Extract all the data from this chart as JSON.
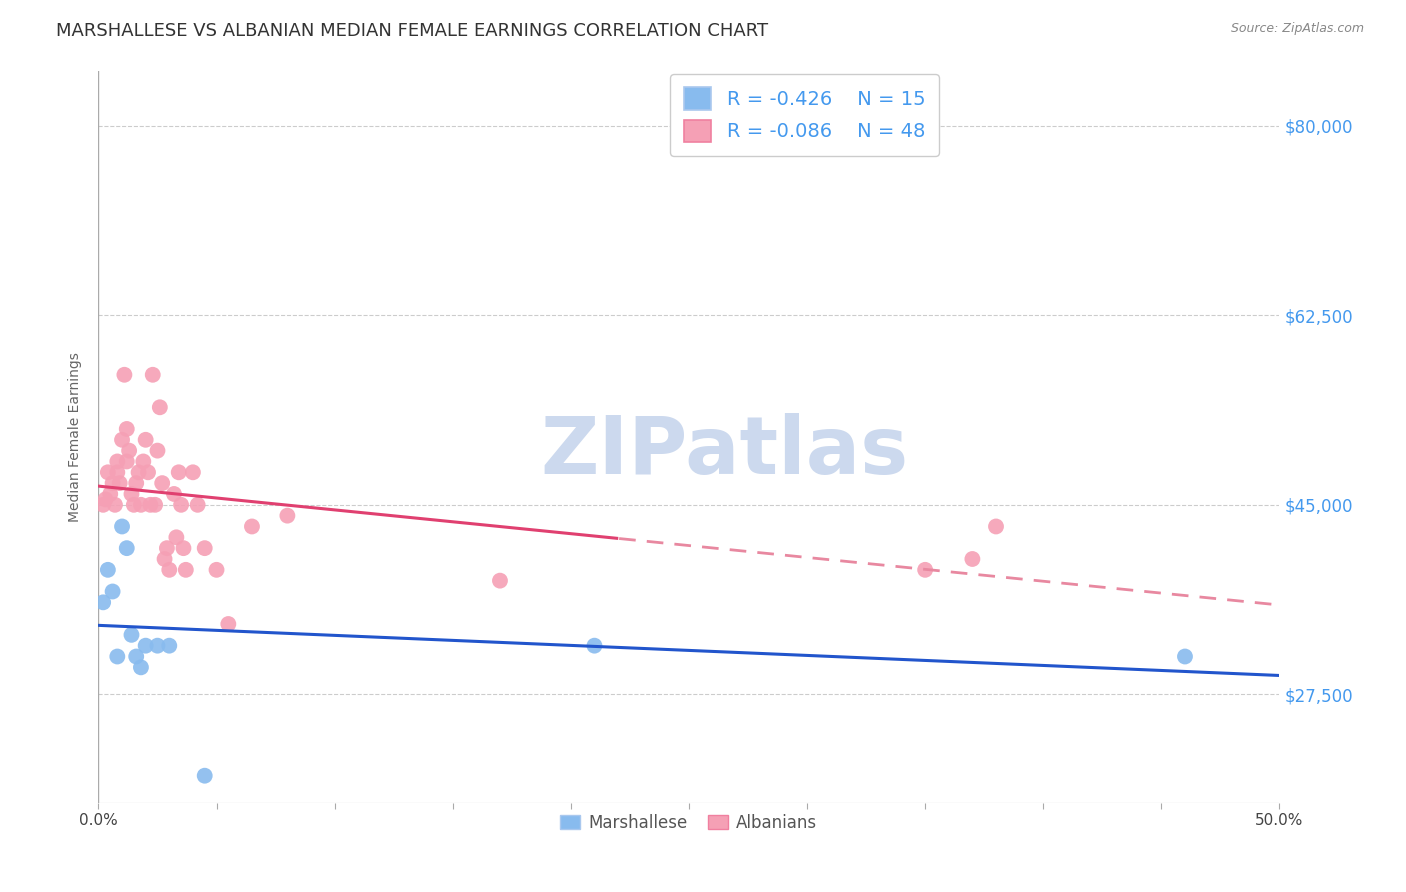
{
  "title": "MARSHALLESE VS ALBANIAN MEDIAN FEMALE EARNINGS CORRELATION CHART",
  "source": "Source: ZipAtlas.com",
  "ylabel": "Median Female Earnings",
  "xlim": [
    0.0,
    0.5
  ],
  "ylim": [
    17500,
    85000
  ],
  "xtick_vals": [
    0.0,
    0.05,
    0.1,
    0.15,
    0.2,
    0.25,
    0.3,
    0.35,
    0.4,
    0.45,
    0.5
  ],
  "xtick_labels_show": {
    "0.0": "0.0%",
    "0.5": "50.0%"
  },
  "ytick_vals": [
    27500,
    45000,
    62500,
    80000
  ],
  "ytick_labels": [
    "$27,500",
    "$45,000",
    "$62,500",
    "$80,000"
  ],
  "background_color": "#ffffff",
  "grid_color": "#cccccc",
  "watermark": "ZIPatlas",
  "watermark_color": "#ccd9ee",
  "legend_r_marshallese": "-0.426",
  "legend_n_marshallese": "15",
  "legend_r_albanians": "-0.086",
  "legend_n_albanians": "48",
  "marshallese_color": "#88bbee",
  "albanians_color": "#f5a0b5",
  "marshallese_line_color": "#2255cc",
  "albanians_line_solid_color": "#e04070",
  "albanians_line_dashed_color": "#e888a0",
  "albanians_line_switch_x": 0.22,
  "title_fontsize": 13,
  "axis_label_fontsize": 10,
  "tick_label_color_y": "#4499ee",
  "marshallese_x": [
    0.002,
    0.004,
    0.006,
    0.008,
    0.01,
    0.012,
    0.014,
    0.016,
    0.018,
    0.02,
    0.025,
    0.03,
    0.045,
    0.21,
    0.46
  ],
  "marshallese_y": [
    36000,
    39000,
    37000,
    31000,
    43000,
    41000,
    33000,
    31000,
    30000,
    32000,
    32000,
    32000,
    20000,
    32000,
    31000
  ],
  "albanians_x": [
    0.002,
    0.003,
    0.004,
    0.005,
    0.006,
    0.007,
    0.008,
    0.008,
    0.009,
    0.01,
    0.011,
    0.012,
    0.012,
    0.013,
    0.014,
    0.015,
    0.016,
    0.017,
    0.018,
    0.019,
    0.02,
    0.021,
    0.022,
    0.023,
    0.024,
    0.025,
    0.026,
    0.027,
    0.028,
    0.029,
    0.03,
    0.032,
    0.033,
    0.034,
    0.035,
    0.036,
    0.037,
    0.04,
    0.042,
    0.045,
    0.05,
    0.055,
    0.065,
    0.08,
    0.17,
    0.35,
    0.37,
    0.38
  ],
  "albanians_y": [
    45000,
    45500,
    48000,
    46000,
    47000,
    45000,
    48000,
    49000,
    47000,
    51000,
    57000,
    49000,
    52000,
    50000,
    46000,
    45000,
    47000,
    48000,
    45000,
    49000,
    51000,
    48000,
    45000,
    57000,
    45000,
    50000,
    54000,
    47000,
    40000,
    41000,
    39000,
    46000,
    42000,
    48000,
    45000,
    41000,
    39000,
    48000,
    45000,
    41000,
    39000,
    34000,
    43000,
    44000,
    38000,
    39000,
    40000,
    43000
  ]
}
